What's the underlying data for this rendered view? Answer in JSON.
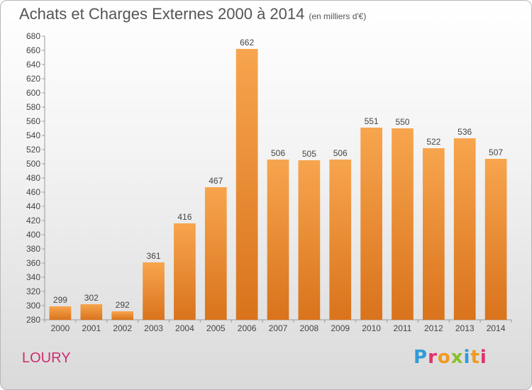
{
  "header": {
    "title": "Achats et Charges Externes 2000 à 2014",
    "subtitle": "(en milliers d'€)"
  },
  "location": "LOURY",
  "brand": {
    "name": "Proxiti",
    "colors": [
      "#2f9bd8",
      "#8bbf2d",
      "#f29a1e",
      "#e2316e"
    ]
  },
  "chart_data": {
    "type": "bar",
    "title": "Achats et Charges Externes 2000 à 2014",
    "subtitle": "(en milliers d'€)",
    "xlabel": "",
    "ylabel": "",
    "categories": [
      "2000",
      "2001",
      "2002",
      "2003",
      "2004",
      "2005",
      "2006",
      "2007",
      "2008",
      "2009",
      "2010",
      "2011",
      "2012",
      "2013",
      "2014"
    ],
    "values": [
      299,
      302,
      292,
      361,
      416,
      467,
      662,
      506,
      505,
      506,
      551,
      550,
      522,
      536,
      507
    ],
    "ylim": [
      280,
      680
    ],
    "yticks": [
      280,
      300,
      320,
      340,
      360,
      380,
      400,
      420,
      440,
      460,
      480,
      500,
      520,
      540,
      560,
      580,
      600,
      620,
      640,
      660,
      680
    ],
    "grid": false,
    "legend": "none",
    "bar_color_top": "#f7a54e",
    "bar_color_bottom": "#d9731c"
  }
}
